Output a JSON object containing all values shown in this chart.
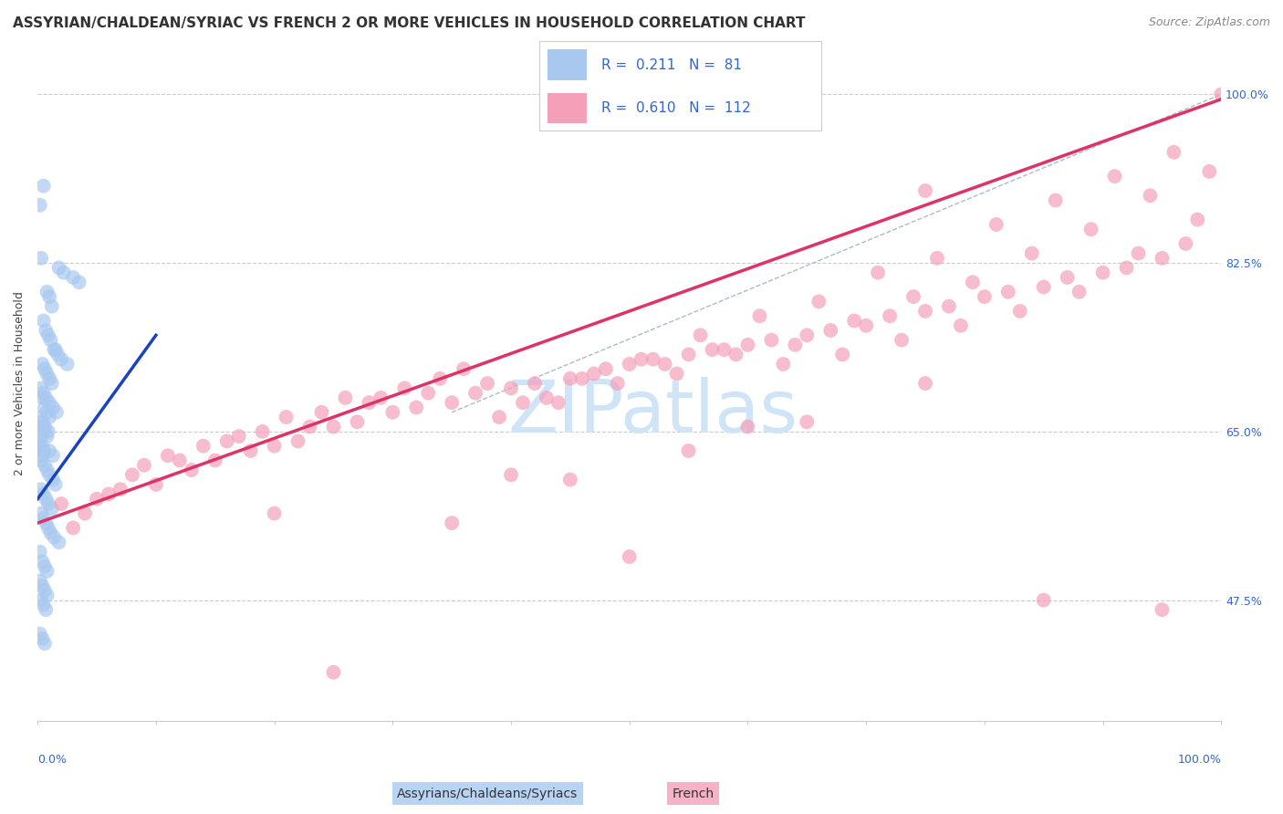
{
  "title": "ASSYRIAN/CHALDEAN/SYRIAC VS FRENCH 2 OR MORE VEHICLES IN HOUSEHOLD CORRELATION CHART",
  "source": "Source: ZipAtlas.com",
  "ylabel": "2 or more Vehicles in Household",
  "yticks": [
    47.5,
    65.0,
    82.5,
    100.0
  ],
  "ytick_labels": [
    "47.5%",
    "65.0%",
    "82.5%",
    "100.0%"
  ],
  "legend_blue_r": "0.211",
  "legend_blue_n": "81",
  "legend_pink_r": "0.610",
  "legend_pink_n": "112",
  "legend_blue_label": "Assyrians/Chaldeans/Syriacs",
  "legend_pink_label": "French",
  "blue_color": "#A8C8F0",
  "pink_color": "#F4A0B8",
  "blue_line_color": "#1A44BB",
  "pink_line_color": "#DD3366",
  "diag_color": "#BBBBBB",
  "watermark_text": "ZIPatlas",
  "watermark_color": "#D0E4F8",
  "blue_r": 0.211,
  "blue_n": 81,
  "pink_r": 0.61,
  "pink_n": 112,
  "blue_scatter_x": [
    0.5,
    1.8,
    2.2,
    3.0,
    3.5,
    0.2,
    0.8,
    1.0,
    1.2,
    0.3,
    0.5,
    0.7,
    0.9,
    1.1,
    1.4,
    1.7,
    2.0,
    2.5,
    1.5,
    0.4,
    0.6,
    0.8,
    1.0,
    1.2,
    0.3,
    0.5,
    0.7,
    1.0,
    1.3,
    1.6,
    0.2,
    0.4,
    0.6,
    0.9,
    0.3,
    0.2,
    0.1,
    0.8,
    0.5,
    0.4,
    0.3,
    0.6,
    0.8,
    1.0,
    1.3,
    1.5,
    0.4,
    0.6,
    0.8,
    1.0,
    0.3,
    0.5,
    0.7,
    0.9,
    1.2,
    0.4,
    0.6,
    0.3,
    0.5,
    0.7,
    0.9,
    1.1,
    1.4,
    1.8,
    0.4,
    0.2,
    0.4,
    0.6,
    0.8,
    0.2,
    0.4,
    0.6,
    0.8,
    0.3,
    0.5,
    0.7,
    1.0,
    1.3,
    0.2,
    0.4,
    0.6
  ],
  "blue_scatter_y": [
    90.5,
    82.0,
    81.5,
    81.0,
    80.5,
    88.5,
    79.5,
    79.0,
    78.0,
    83.0,
    76.5,
    75.5,
    75.0,
    74.5,
    73.5,
    73.0,
    72.5,
    72.0,
    73.5,
    72.0,
    71.5,
    71.0,
    70.5,
    70.0,
    69.5,
    69.0,
    68.5,
    68.0,
    67.5,
    67.0,
    66.5,
    66.0,
    65.5,
    65.0,
    64.5,
    64.0,
    63.5,
    64.5,
    63.0,
    62.5,
    62.0,
    61.5,
    61.0,
    60.5,
    60.0,
    59.5,
    68.5,
    67.5,
    67.0,
    66.5,
    59.0,
    58.5,
    58.0,
    57.5,
    57.0,
    65.5,
    65.0,
    56.5,
    56.0,
    55.5,
    55.0,
    54.5,
    54.0,
    53.5,
    63.5,
    52.5,
    51.5,
    51.0,
    50.5,
    49.5,
    49.0,
    48.5,
    48.0,
    47.5,
    47.0,
    46.5,
    63.0,
    62.5,
    44.0,
    43.5,
    43.0
  ],
  "pink_scatter_x": [
    2.0,
    5.0,
    7.0,
    10.0,
    13.0,
    15.0,
    18.0,
    20.0,
    22.0,
    25.0,
    27.0,
    30.0,
    32.0,
    35.0,
    37.0,
    40.0,
    42.0,
    45.0,
    47.0,
    50.0,
    52.0,
    55.0,
    57.0,
    60.0,
    62.0,
    65.0,
    67.0,
    70.0,
    72.0,
    75.0,
    77.0,
    80.0,
    82.0,
    85.0,
    87.0,
    90.0,
    92.0,
    95.0,
    97.0,
    100.0,
    3.0,
    8.0,
    12.0,
    17.0,
    23.0,
    28.0,
    33.0,
    38.0,
    43.0,
    48.0,
    53.0,
    58.0,
    63.0,
    68.0,
    73.0,
    78.0,
    83.0,
    88.0,
    93.0,
    98.0,
    4.0,
    9.0,
    14.0,
    19.0,
    24.0,
    29.0,
    34.0,
    39.0,
    44.0,
    49.0,
    54.0,
    59.0,
    64.0,
    69.0,
    74.0,
    79.0,
    84.0,
    89.0,
    94.0,
    99.0,
    6.0,
    11.0,
    16.0,
    21.0,
    26.0,
    31.0,
    36.0,
    41.0,
    46.0,
    51.0,
    56.0,
    61.0,
    66.0,
    71.0,
    76.0,
    81.0,
    86.0,
    91.0,
    96.0,
    35.0,
    45.0,
    55.0,
    65.0,
    75.0,
    85.0,
    95.0,
    25.0,
    50.0,
    75.0,
    20.0,
    40.0,
    60.0
  ],
  "pink_scatter_y": [
    57.5,
    58.0,
    59.0,
    59.5,
    61.0,
    62.0,
    63.0,
    63.5,
    64.0,
    65.5,
    66.0,
    67.0,
    67.5,
    68.0,
    69.0,
    69.5,
    70.0,
    70.5,
    71.0,
    72.0,
    72.5,
    73.0,
    73.5,
    74.0,
    74.5,
    75.0,
    75.5,
    76.0,
    77.0,
    77.5,
    78.0,
    79.0,
    79.5,
    80.0,
    81.0,
    81.5,
    82.0,
    83.0,
    84.5,
    100.0,
    55.0,
    60.5,
    62.0,
    64.5,
    65.5,
    68.0,
    69.0,
    70.0,
    68.5,
    71.5,
    72.0,
    73.5,
    72.0,
    73.0,
    74.5,
    76.0,
    77.5,
    79.5,
    83.5,
    87.0,
    56.5,
    61.5,
    63.5,
    65.0,
    67.0,
    68.5,
    70.5,
    66.5,
    68.0,
    70.0,
    71.0,
    73.0,
    74.0,
    76.5,
    79.0,
    80.5,
    83.5,
    86.0,
    89.5,
    92.0,
    58.5,
    62.5,
    64.0,
    66.5,
    68.5,
    69.5,
    71.5,
    68.0,
    70.5,
    72.5,
    75.0,
    77.0,
    78.5,
    81.5,
    83.0,
    86.5,
    89.0,
    91.5,
    94.0,
    55.5,
    60.0,
    63.0,
    66.0,
    70.0,
    47.5,
    46.5,
    40.0,
    52.0,
    90.0,
    56.5,
    60.5,
    65.5
  ],
  "xmin": 0,
  "xmax": 100,
  "ymin": 35,
  "ymax": 105,
  "grid_color": "#CCCCCC",
  "background_color": "#FFFFFF",
  "title_fontsize": 11,
  "source_fontsize": 9,
  "label_fontsize": 9,
  "tick_fontsize": 9,
  "legend_fontsize": 11,
  "watermark_fontsize": 58,
  "blue_line_x_start": 0,
  "blue_line_x_end": 10,
  "blue_line_y_start": 58.0,
  "blue_line_y_end": 75.0,
  "pink_line_x_start": 0,
  "pink_line_x_end": 100,
  "pink_line_y_start": 55.5,
  "pink_line_y_end": 99.5,
  "diag_x_start": 35,
  "diag_x_end": 100,
  "diag_y_start": 67,
  "diag_y_end": 100
}
